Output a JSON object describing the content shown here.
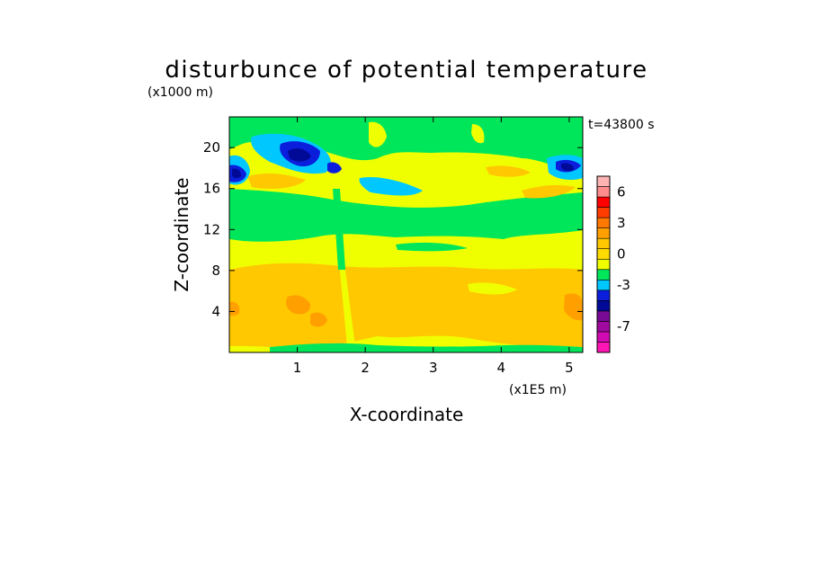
{
  "chart_data": {
    "type": "heatmap",
    "title": "disturbunce of potential temperature",
    "time_label": "t=43800 s",
    "xlabel": "X-coordinate",
    "xunit": "(x1E5 m)",
    "ylabel": "Z-coordinate",
    "yunit": "(x1000 m)",
    "xlim": [
      0,
      5.2
    ],
    "ylim": [
      0,
      23
    ],
    "x_ticks": [
      1,
      2,
      3,
      4,
      5
    ],
    "y_ticks": [
      4,
      8,
      12,
      16,
      20
    ],
    "colorbar": {
      "levels": [
        -9,
        -8,
        -7,
        -6,
        -5,
        -4,
        -3,
        -2,
        -1,
        0,
        1,
        2,
        3,
        4,
        5,
        6,
        7
      ],
      "colors": [
        "#ff14b4",
        "#d20ab4",
        "#a00aa0",
        "#780a96",
        "#000a96",
        "#0a1edc",
        "#00c8ff",
        "#00e65a",
        "#f0ff00",
        "#ffdc00",
        "#ffc800",
        "#ffa000",
        "#ff7800",
        "#ff3c00",
        "#ff0000",
        "#ff8c8c",
        "#ffb4b4"
      ],
      "tick_labels": [
        {
          "value": 6,
          "label": "6"
        },
        {
          "value": 3,
          "label": "3"
        },
        {
          "value": 0,
          "label": "0"
        },
        {
          "value": -3,
          "label": "-3"
        },
        {
          "value": -7,
          "label": "-7"
        }
      ]
    },
    "regions": [
      {
        "level": 0,
        "z_min": 0.2,
        "z_max": 23,
        "color": "#f0ff00"
      },
      {
        "level": 1,
        "z_min": 1.5,
        "z_max": 8.8,
        "color": "#ffc800"
      },
      {
        "level": -1,
        "z_min": 11.2,
        "z_max": 16.8,
        "color": "#00e65a"
      },
      {
        "level": -1,
        "z_min": 19.5,
        "z_max": 23,
        "color": "#00e65a"
      },
      {
        "level": -2,
        "z_min": 15.5,
        "z_max": 21.5,
        "color": "#00c8ff"
      },
      {
        "level": -3,
        "z_min": 16.5,
        "z_max": 20.2,
        "color": "#0a1edc"
      },
      {
        "level": -4,
        "z_min": 17,
        "z_max": 19.5,
        "color": "#000a96"
      }
    ]
  }
}
